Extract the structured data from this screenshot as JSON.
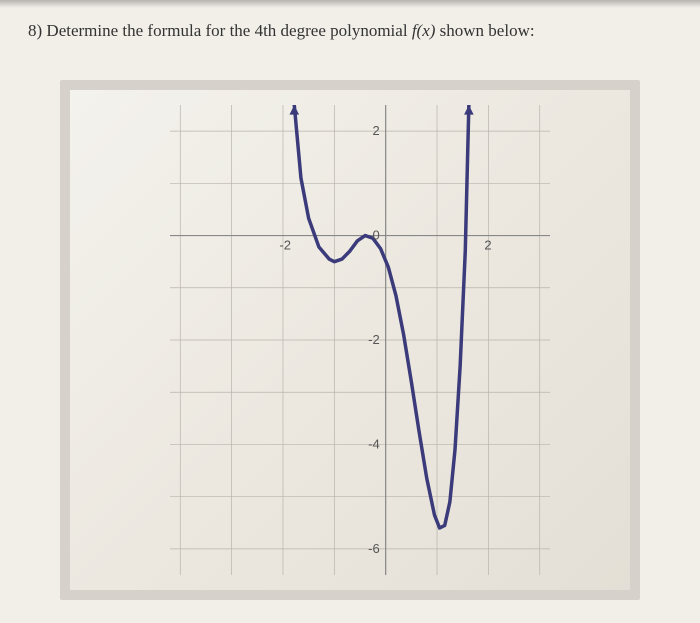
{
  "question": {
    "number": "8)",
    "text_before": "Determine the formula for the 4th degree polynomial",
    "fx": "f(x)",
    "text_after": "shown below:"
  },
  "chart": {
    "type": "line",
    "x_domain": [
      -4.2,
      3.2
    ],
    "y_domain": [
      -6.5,
      2.5
    ],
    "x_gridlines": [
      -4,
      -3,
      -2,
      -1,
      0,
      1,
      2,
      3
    ],
    "y_gridlines": [
      -6,
      -5,
      -4,
      -3,
      -2,
      -1,
      0,
      1,
      2
    ],
    "x_tick_labels": [
      {
        "value": -2,
        "text": "-2"
      },
      {
        "value": 2,
        "text": "2"
      }
    ],
    "y_tick_labels": [
      {
        "value": 2,
        "text": "2"
      },
      {
        "value": 0,
        "text": "0"
      },
      {
        "value": -2,
        "text": "-2"
      },
      {
        "value": -4,
        "text": "-4"
      },
      {
        "value": -6,
        "text": "-6"
      }
    ],
    "curve_points": [
      [
        -1.78,
        2.5
      ],
      [
        -1.65,
        1.1
      ],
      [
        -1.5,
        0.33
      ],
      [
        -1.3,
        -0.22
      ],
      [
        -1.1,
        -0.45
      ],
      [
        -1.0,
        -0.5
      ],
      [
        -0.85,
        -0.45
      ],
      [
        -0.7,
        -0.3
      ],
      [
        -0.55,
        -0.1
      ],
      [
        -0.4,
        0.0
      ],
      [
        -0.25,
        -0.05
      ],
      [
        -0.1,
        -0.25
      ],
      [
        0.05,
        -0.6
      ],
      [
        0.2,
        -1.15
      ],
      [
        0.35,
        -1.9
      ],
      [
        0.5,
        -2.8
      ],
      [
        0.65,
        -3.75
      ],
      [
        0.8,
        -4.65
      ],
      [
        0.95,
        -5.35
      ],
      [
        1.05,
        -5.6
      ],
      [
        1.15,
        -5.55
      ],
      [
        1.25,
        -5.1
      ],
      [
        1.35,
        -4.1
      ],
      [
        1.45,
        -2.5
      ],
      [
        1.55,
        -0.3
      ],
      [
        1.62,
        2.5
      ]
    ],
    "curve_color": "#3b3a7a",
    "curve_width": 3.5,
    "grid_color": "#b8b4ab",
    "grid_width": 0.7,
    "axis_color": "#888",
    "axis_width": 1.2,
    "label_color": "#555",
    "label_fontsize": 13,
    "arrow_size": 8
  }
}
